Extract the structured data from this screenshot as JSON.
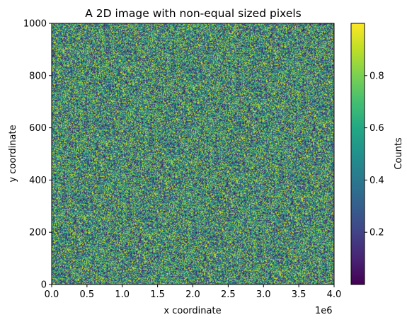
{
  "chart_data": {
    "type": "heatmap",
    "title": "A 2D image with non-equal sized pixels",
    "xlabel": "x coordinate",
    "ylabel": "y coordinate",
    "x_offset_label": "1e6",
    "xlim": [
      0,
      4
    ],
    "ylim": [
      0,
      1000
    ],
    "x_ticks": [
      0.0,
      0.5,
      1.0,
      1.5,
      2.0,
      2.5,
      3.0,
      3.5,
      4.0
    ],
    "x_tick_labels": [
      "0.0",
      "0.5",
      "1.0",
      "1.5",
      "2.0",
      "2.5",
      "3.0",
      "3.5",
      "4.0"
    ],
    "y_ticks": [
      0,
      200,
      400,
      600,
      800,
      1000
    ],
    "y_tick_labels": [
      "0",
      "200",
      "400",
      "600",
      "800",
      "1000"
    ],
    "values_description": "uniform random noise",
    "value_range": [
      0.0,
      1.0
    ],
    "colormap": "viridis",
    "colorbar": {
      "label": "Counts",
      "ticks": [
        0.2,
        0.4,
        0.6,
        0.8
      ],
      "tick_labels": [
        "0.2",
        "0.4",
        "0.6",
        "0.8"
      ],
      "range": [
        0.0,
        1.0
      ]
    }
  }
}
